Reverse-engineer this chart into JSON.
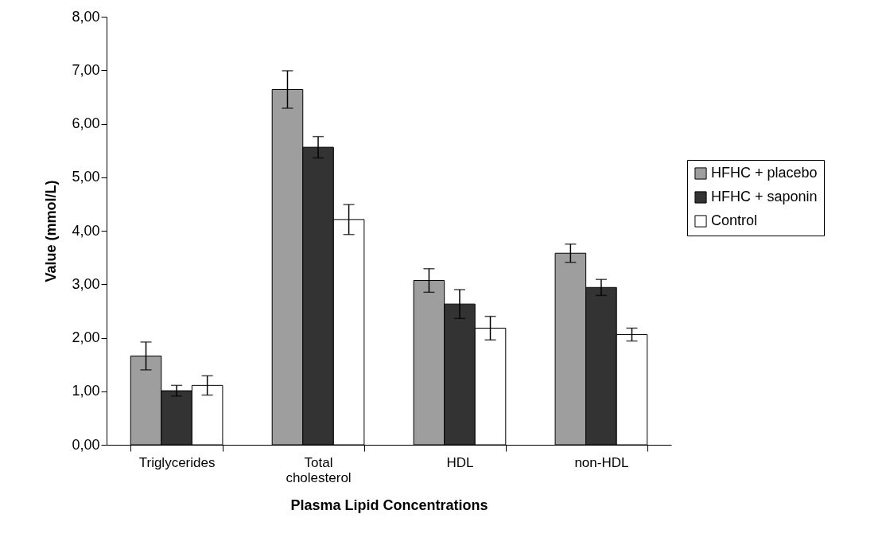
{
  "chart_data": {
    "type": "bar",
    "xlabel": "Plasma Lipid Concentrations",
    "ylabel": "Value (mmol/L)",
    "categories": [
      "Triglycerides",
      "Total cholesterol",
      "HDL",
      "non-HDL"
    ],
    "series": [
      {
        "name": "HFHC + placebo",
        "color": "#9e9e9e",
        "values": [
          1.66,
          6.64,
          3.07,
          3.58
        ],
        "errors": [
          0.26,
          0.35,
          0.22,
          0.17
        ]
      },
      {
        "name": "HFHC + saponin",
        "color": "#333333",
        "values": [
          1.01,
          5.56,
          2.63,
          2.94
        ],
        "errors": [
          0.1,
          0.2,
          0.27,
          0.15
        ]
      },
      {
        "name": "Control",
        "color": "#ffffff",
        "values": [
          1.11,
          4.21,
          2.18,
          2.06
        ],
        "errors": [
          0.18,
          0.28,
          0.22,
          0.12
        ]
      }
    ],
    "ylim": [
      0,
      8
    ],
    "yticks": [
      {
        "value": 0,
        "label": "0,00"
      },
      {
        "value": 1,
        "label": "1,00"
      },
      {
        "value": 2,
        "label": "2,00"
      },
      {
        "value": 3,
        "label": "3,00"
      },
      {
        "value": 4,
        "label": "4,00"
      },
      {
        "value": 5,
        "label": "5,00"
      },
      {
        "value": 6,
        "label": "6,00"
      },
      {
        "value": 7,
        "label": "7,00"
      },
      {
        "value": 8,
        "label": "8,00"
      }
    ],
    "legend": "right",
    "grid": false
  }
}
